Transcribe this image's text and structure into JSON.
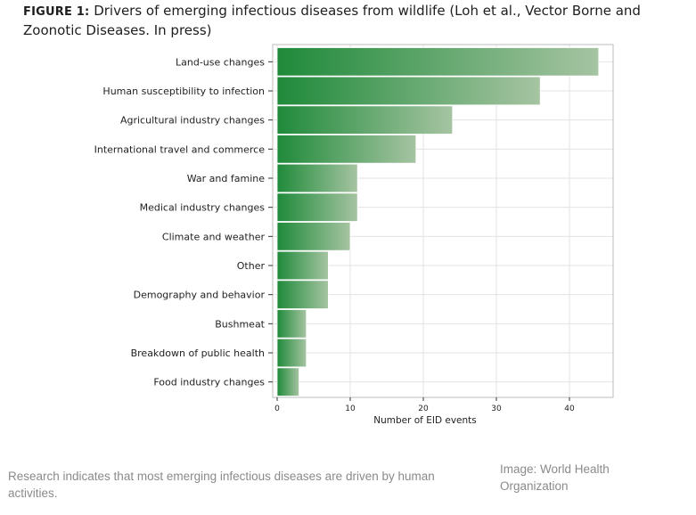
{
  "figure": {
    "label": "FIGURE 1:",
    "title": "Drivers of emerging infectious diseases from wildlife (Loh et al., Vector Borne and Zoonotic Diseases. In press)"
  },
  "caption": "Research indicates that most emerging infectious diseases are driven by human activities.",
  "credit": "Image: World Health Organization",
  "colors": {
    "bar_dark": "#1f8a3a",
    "bar_light": "#a6c4a2",
    "bar_stroke": "#ffffff",
    "grid": "#e3e3e3",
    "frame": "#bdbdbd"
  },
  "chart_data": {
    "type": "bar",
    "orientation": "horizontal",
    "title": "",
    "xlabel": "Number of EID events",
    "ylabel": "",
    "xlim": [
      0,
      46
    ],
    "xticks": [
      0,
      10,
      20,
      30,
      40
    ],
    "grid": true,
    "categories": [
      "Land-use changes",
      "Human susceptibility to infection",
      "Agricultural industry changes",
      "International travel and commerce",
      "War and famine",
      "Medical industry changes",
      "Climate and weather",
      "Other",
      "Demography and behavior",
      "Bushmeat",
      "Breakdown of public health",
      "Food industry changes"
    ],
    "values": [
      44,
      36,
      24,
      19,
      11,
      11,
      10,
      7,
      7,
      4,
      4,
      3
    ]
  }
}
